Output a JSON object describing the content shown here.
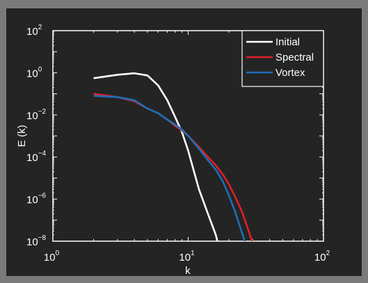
{
  "chart_data": {
    "type": "line",
    "xscale": "log",
    "yscale": "log",
    "xlim": [
      1,
      100
    ],
    "ylim": [
      1e-08,
      100
    ],
    "xlabel": "k",
    "ylabel": "E (k)",
    "grid": false,
    "legend_position": "top-right",
    "x_ticks": [
      {
        "value": 1,
        "base": "10",
        "exp": "0"
      },
      {
        "value": 10,
        "base": "10",
        "exp": "1"
      },
      {
        "value": 100,
        "base": "10",
        "exp": "2"
      }
    ],
    "y_ticks": [
      {
        "value": 1e-08,
        "base": "10",
        "exp": "−8"
      },
      {
        "value": 1e-06,
        "base": "10",
        "exp": "−6"
      },
      {
        "value": 0.0001,
        "base": "10",
        "exp": "−4"
      },
      {
        "value": 0.01,
        "base": "10",
        "exp": "−2"
      },
      {
        "value": 1,
        "base": "10",
        "exp": "0"
      },
      {
        "value": 100,
        "base": "10",
        "exp": "2"
      }
    ],
    "series": [
      {
        "name": "Initial",
        "color": "#ffffff",
        "x": [
          2,
          3,
          4,
          5,
          6,
          7,
          8,
          9,
          10,
          12,
          14,
          16,
          18
        ],
        "y": [
          0.55,
          0.8,
          0.95,
          0.75,
          0.25,
          0.05,
          0.008,
          0.0015,
          0.0002,
          3e-06,
          2e-07,
          2e-08,
          1e-09
        ]
      },
      {
        "name": "Spectral",
        "color": "#e0202a",
        "x": [
          2,
          3,
          4,
          5,
          6,
          7,
          8,
          9,
          10,
          12,
          14,
          16,
          18,
          20,
          22,
          25,
          28,
          30
        ],
        "y": [
          0.1,
          0.07,
          0.045,
          0.02,
          0.012,
          0.006,
          0.003,
          0.0018,
          0.001,
          0.0003,
          0.0001,
          4e-05,
          1.5e-05,
          5e-06,
          1.5e-06,
          2.5e-07,
          3e-08,
          8e-09
        ]
      },
      {
        "name": "Vortex",
        "color": "#1e6fb8",
        "x": [
          2,
          3,
          4,
          5,
          6,
          7,
          8,
          9,
          10,
          12,
          14,
          16,
          18,
          20,
          22,
          25,
          27
        ],
        "y": [
          0.08,
          0.07,
          0.05,
          0.02,
          0.012,
          0.006,
          0.0035,
          0.002,
          0.001,
          0.00025,
          7e-05,
          2.5e-05,
          7e-06,
          1.5e-06,
          3e-07,
          2.5e-08,
          5e-09
        ]
      }
    ]
  }
}
